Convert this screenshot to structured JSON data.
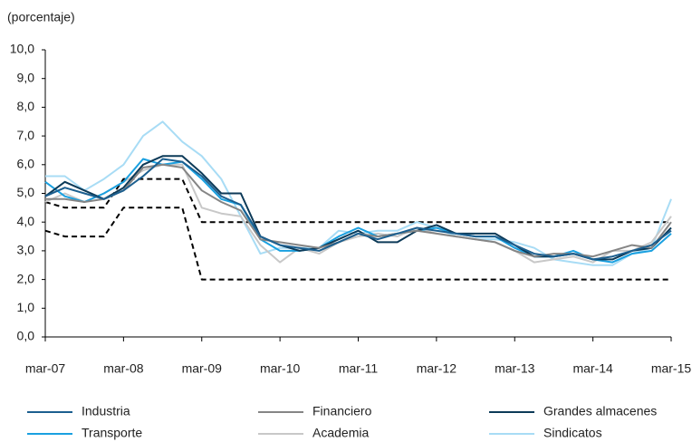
{
  "chart_data": {
    "type": "line",
    "y_label": "(porcentaje)",
    "categories": [
      "mar-07",
      null,
      null,
      null,
      "mar-08",
      null,
      null,
      null,
      "mar-09",
      null,
      null,
      null,
      "mar-10",
      null,
      null,
      null,
      "mar-11",
      null,
      null,
      null,
      "mar-12",
      null,
      null,
      null,
      "mar-13",
      null,
      null,
      null,
      "mar-14",
      null,
      null,
      null,
      "mar-15"
    ],
    "ylim": [
      0,
      10
    ],
    "yticks": [
      {
        "value": 0,
        "label": "0,0"
      },
      {
        "value": 1,
        "label": "1,0"
      },
      {
        "value": 2,
        "label": "2,0"
      },
      {
        "value": 3,
        "label": "3,0"
      },
      {
        "value": 4,
        "label": "4,0"
      },
      {
        "value": 5,
        "label": "5,0"
      },
      {
        "value": 6,
        "label": "6,0"
      },
      {
        "value": 7,
        "label": "7,0"
      },
      {
        "value": 8,
        "label": "8,0"
      },
      {
        "value": 9,
        "label": "9,0"
      },
      {
        "value": 10,
        "label": "10,0"
      }
    ],
    "grid": false,
    "series": [
      {
        "name": "Industria",
        "color": "#1c5f8f",
        "values": [
          4.9,
          5.2,
          5.0,
          4.8,
          5.1,
          5.6,
          6.2,
          6.1,
          5.6,
          4.9,
          4.6,
          3.5,
          3.2,
          3.1,
          3.0,
          3.3,
          3.6,
          3.4,
          3.6,
          3.8,
          3.7,
          3.6,
          3.5,
          3.5,
          3.2,
          2.9,
          2.8,
          2.9,
          2.7,
          2.8,
          3.0,
          3.2,
          3.7
        ]
      },
      {
        "name": "Financiero",
        "color": "#858585",
        "values": [
          4.8,
          4.8,
          4.7,
          4.8,
          5.1,
          5.9,
          6.0,
          5.9,
          5.1,
          4.7,
          4.4,
          3.4,
          3.3,
          3.2,
          3.1,
          3.3,
          3.6,
          3.5,
          3.6,
          3.7,
          3.6,
          3.5,
          3.4,
          3.3,
          3.0,
          2.8,
          2.9,
          2.9,
          2.8,
          3.0,
          3.2,
          3.1,
          4.0
        ]
      },
      {
        "name": "Grandes almacenes",
        "color": "#0c3a58",
        "values": [
          4.9,
          5.4,
          5.1,
          4.8,
          5.2,
          6.0,
          6.3,
          6.3,
          5.7,
          5.0,
          5.0,
          3.5,
          3.2,
          3.0,
          3.1,
          3.4,
          3.7,
          3.3,
          3.3,
          3.7,
          3.9,
          3.6,
          3.6,
          3.6,
          3.2,
          2.8,
          2.8,
          2.9,
          2.7,
          2.7,
          3.0,
          3.1,
          3.8
        ]
      },
      {
        "name": "Transporte",
        "color": "#1aa0e0",
        "values": [
          5.4,
          4.9,
          4.7,
          5.0,
          5.4,
          6.2,
          6.0,
          6.1,
          5.5,
          4.8,
          4.6,
          3.4,
          3.0,
          3.0,
          3.1,
          3.5,
          3.8,
          3.5,
          3.6,
          3.7,
          3.8,
          3.6,
          3.5,
          3.5,
          3.1,
          2.8,
          2.8,
          3.0,
          2.7,
          2.6,
          2.9,
          3.0,
          3.6
        ]
      },
      {
        "name": "Academia",
        "color": "#c8c8c8",
        "values": [
          4.7,
          5.0,
          4.7,
          5.0,
          5.4,
          5.8,
          6.0,
          6.0,
          4.5,
          4.3,
          4.2,
          3.2,
          2.6,
          3.1,
          2.9,
          3.3,
          3.5,
          3.6,
          3.5,
          3.8,
          3.6,
          3.5,
          3.4,
          3.3,
          3.0,
          2.6,
          2.7,
          2.8,
          2.6,
          3.0,
          3.0,
          3.3,
          4.2
        ]
      },
      {
        "name": "Sindicatos",
        "color": "#a8dcf5",
        "values": [
          5.6,
          5.6,
          5.1,
          5.5,
          6.0,
          7.0,
          7.5,
          6.8,
          6.3,
          5.5,
          4.2,
          2.9,
          3.1,
          3.1,
          3.1,
          3.7,
          3.6,
          3.7,
          3.7,
          4.0,
          3.8,
          3.5,
          3.4,
          3.4,
          3.3,
          3.1,
          2.7,
          2.6,
          2.5,
          2.5,
          2.9,
          3.1,
          4.8
        ]
      },
      {
        "color": "#000000",
        "dashed": true,
        "values": [
          4.7,
          4.5,
          4.5,
          4.5,
          5.5,
          5.5,
          5.5,
          5.5,
          4.0,
          4.0,
          4.0,
          4.0,
          4.0,
          4.0,
          4.0,
          4.0,
          4.0,
          4.0,
          4.0,
          4.0,
          4.0,
          4.0,
          4.0,
          4.0,
          4.0,
          4.0,
          4.0,
          4.0,
          4.0,
          4.0,
          4.0,
          4.0,
          4.0
        ]
      },
      {
        "color": "#000000",
        "dashed": true,
        "values": [
          3.7,
          3.5,
          3.5,
          3.5,
          4.5,
          4.5,
          4.5,
          4.5,
          2.0,
          2.0,
          2.0,
          2.0,
          2.0,
          2.0,
          2.0,
          2.0,
          2.0,
          2.0,
          2.0,
          2.0,
          2.0,
          2.0,
          2.0,
          2.0,
          2.0,
          2.0,
          2.0,
          2.0,
          2.0,
          2.0,
          2.0,
          2.0,
          2.0
        ]
      }
    ]
  }
}
